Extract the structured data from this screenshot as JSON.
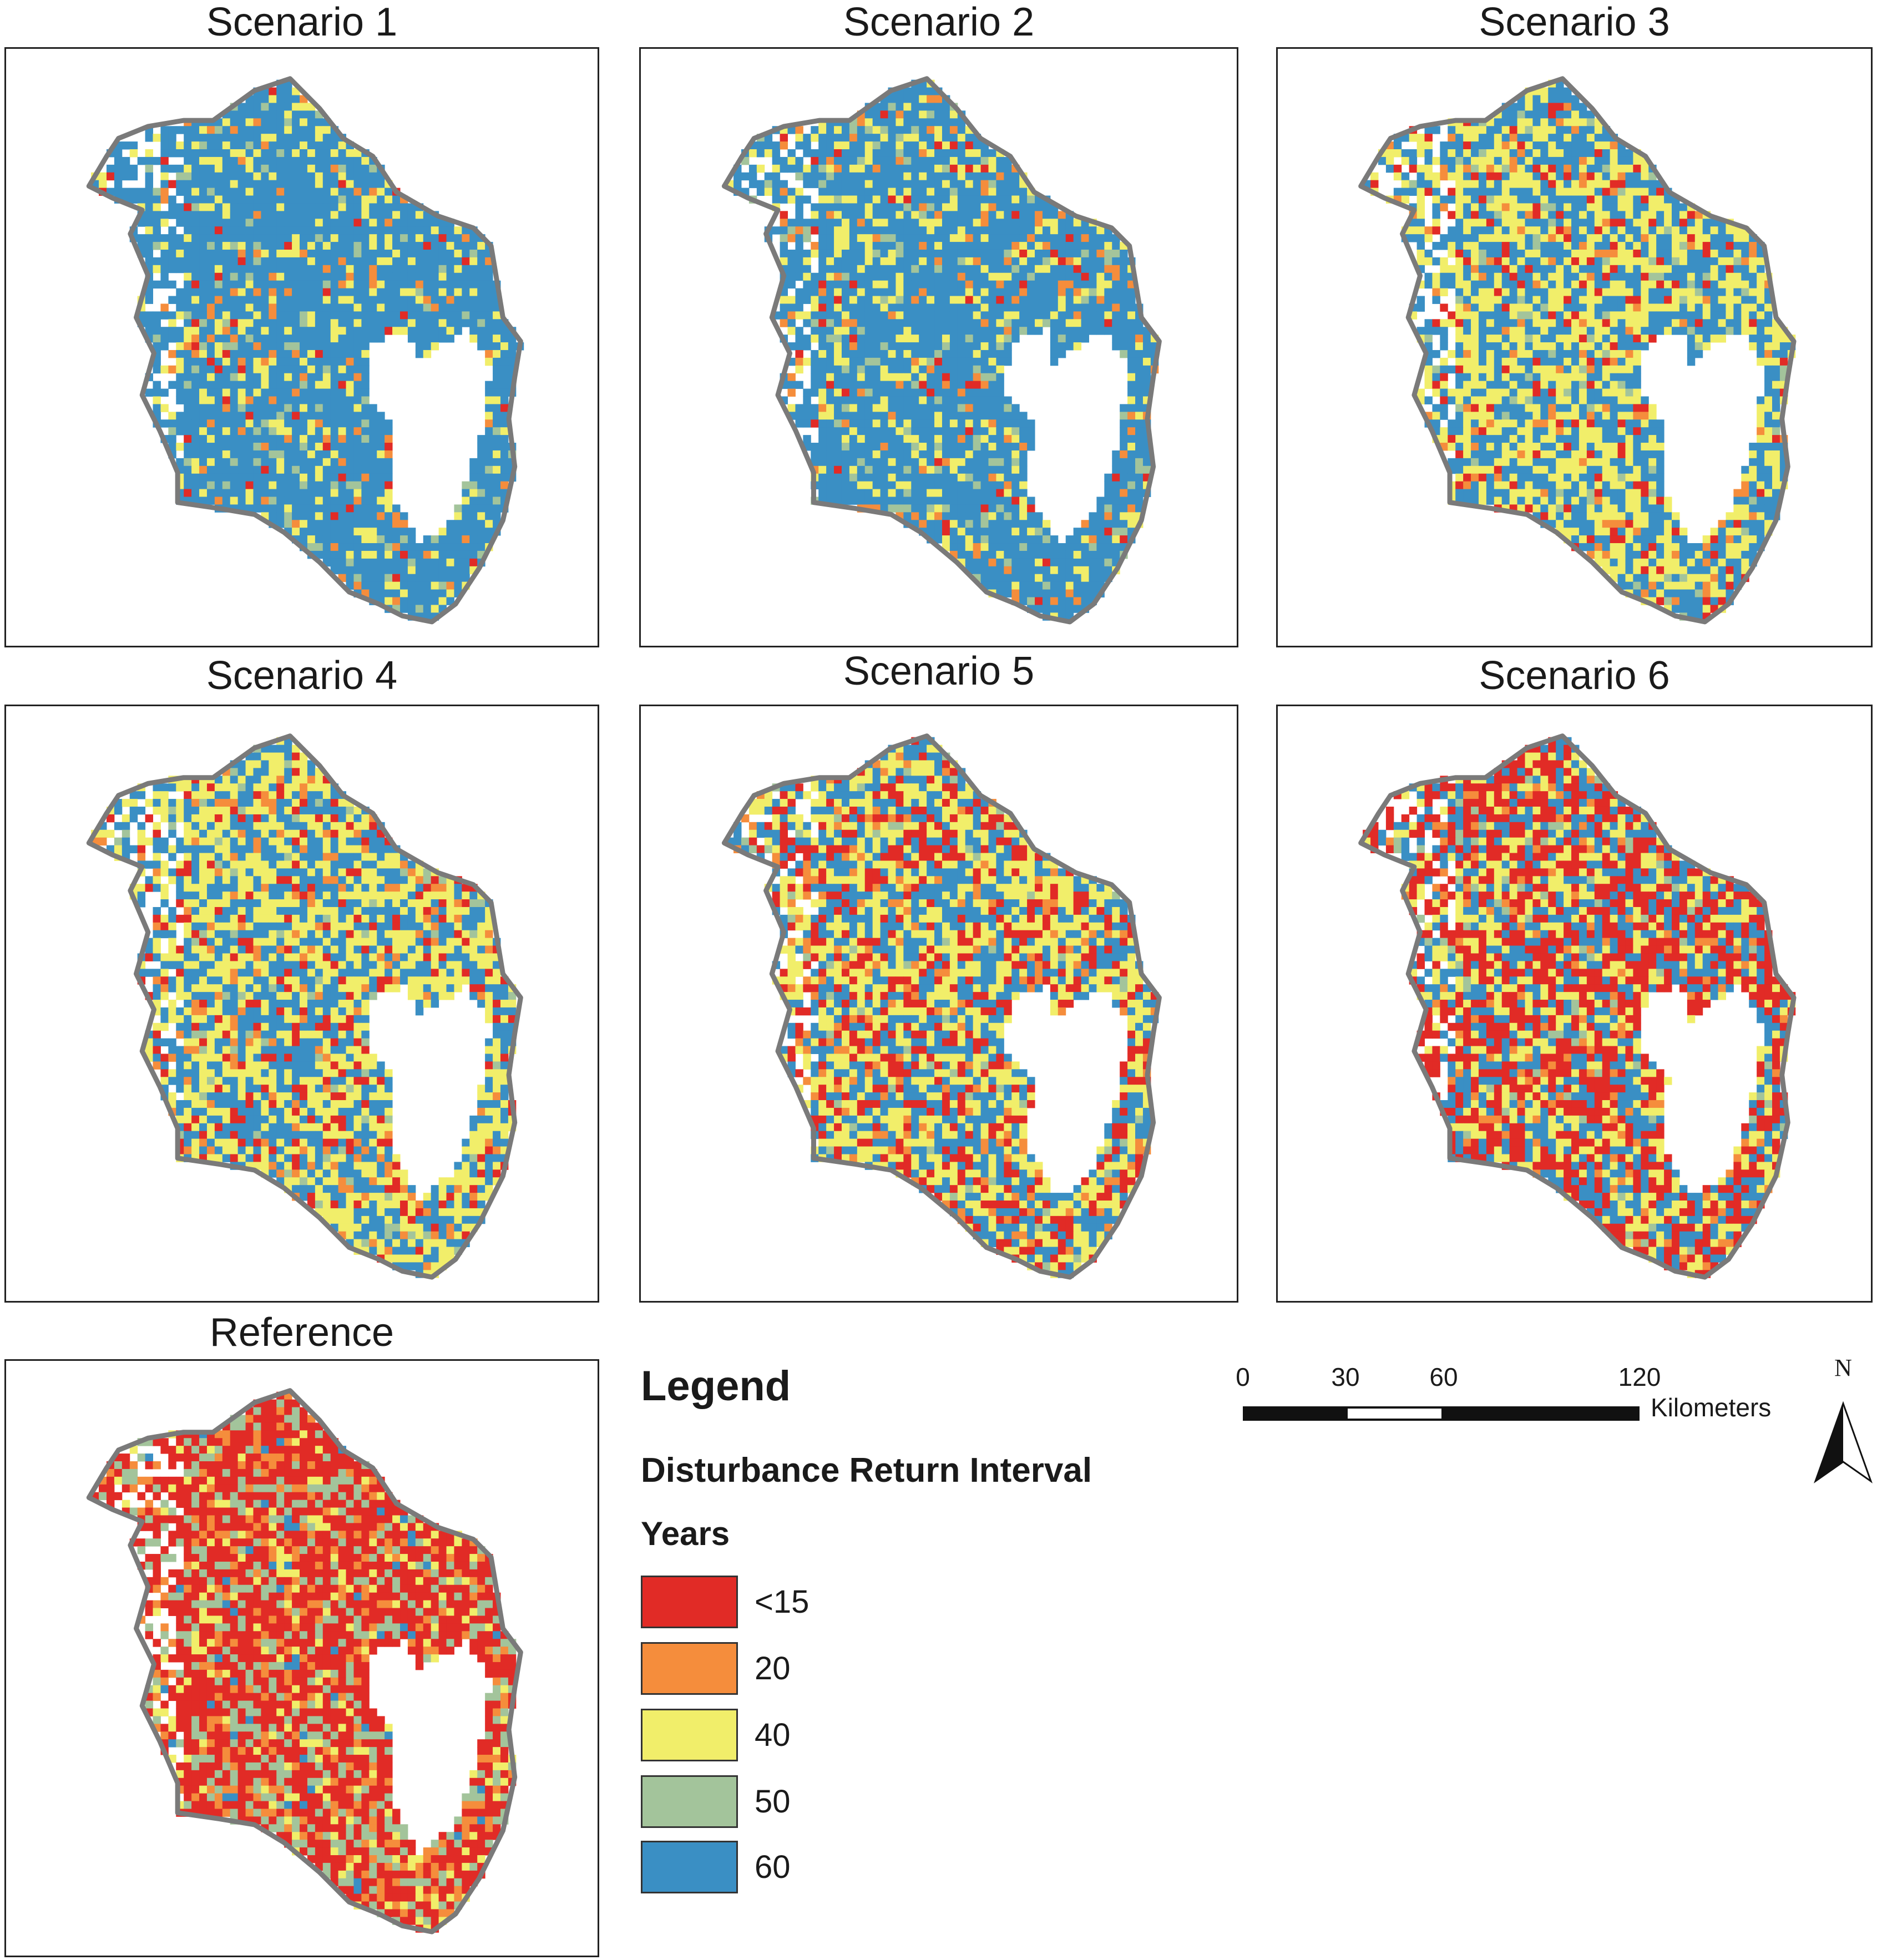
{
  "panels": [
    {
      "id": "s1",
      "title": "Scenario 1",
      "mix": {
        "lt15": 0.02,
        "y20": 0.04,
        "y40": 0.14,
        "y50": 0.06,
        "y60": 0.74
      }
    },
    {
      "id": "s2",
      "title": "Scenario 2",
      "mix": {
        "lt15": 0.03,
        "y20": 0.06,
        "y40": 0.14,
        "y50": 0.07,
        "y60": 0.7
      }
    },
    {
      "id": "s3",
      "title": "Scenario 3",
      "mix": {
        "lt15": 0.06,
        "y20": 0.06,
        "y40": 0.4,
        "y50": 0.04,
        "y60": 0.44
      }
    },
    {
      "id": "s4",
      "title": "Scenario 4",
      "mix": {
        "lt15": 0.1,
        "y20": 0.07,
        "y40": 0.4,
        "y50": 0.03,
        "y60": 0.4
      }
    },
    {
      "id": "s5",
      "title": "Scenario 5",
      "mix": {
        "lt15": 0.22,
        "y20": 0.08,
        "y40": 0.36,
        "y50": 0.03,
        "y60": 0.31
      }
    },
    {
      "id": "s6",
      "title": "Scenario 6",
      "mix": {
        "lt15": 0.38,
        "y20": 0.07,
        "y40": 0.22,
        "y50": 0.03,
        "y60": 0.3
      }
    },
    {
      "id": "ref",
      "title": "Reference",
      "mix": {
        "lt15": 0.55,
        "y20": 0.12,
        "y40": 0.1,
        "y50": 0.2,
        "y60": 0.03
      }
    }
  ],
  "legend": {
    "title": "Legend",
    "subtitle": "Disturbance Return Interval",
    "units": "Years",
    "items": [
      {
        "key": "lt15",
        "label": "<15",
        "color": "#e12b26"
      },
      {
        "key": "y20",
        "label": "20",
        "color": "#f58d3c"
      },
      {
        "key": "y40",
        "label": "40",
        "color": "#f1ee6a"
      },
      {
        "key": "y50",
        "label": "50",
        "color": "#a3c49b"
      },
      {
        "key": "y60",
        "label": "60",
        "color": "#3a8fc4"
      }
    ]
  },
  "scale_bar": {
    "ticks": [
      "0",
      "30",
      "60",
      "120"
    ],
    "tick_values": [
      0,
      30,
      60,
      120
    ],
    "unit": "Kilometers"
  },
  "north_arrow": {
    "label": "N",
    "icon": "north-arrow-icon"
  },
  "colors": {
    "outline": "#7a7a7a",
    "frame": "#222222"
  }
}
